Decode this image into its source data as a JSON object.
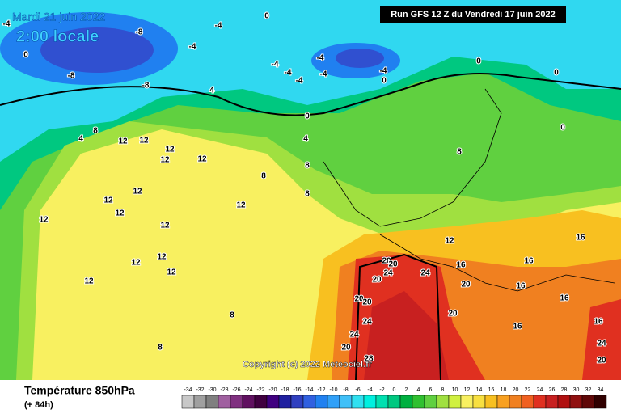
{
  "header": {
    "date": "Mardi 21 juin 2022",
    "time": "2:00 locale",
    "run": "Run GFS 12 Z du Vendredi 17 juin 2022"
  },
  "copyright": "Copyright (c) 2022 Meteociel.fr",
  "legend": {
    "title": "Température 850hPa",
    "subtitle": "(+ 84h)",
    "values": [
      -34,
      -32,
      -30,
      -28,
      -26,
      -24,
      -22,
      -20,
      -18,
      -16,
      -14,
      -12,
      -10,
      -8,
      -6,
      -4,
      -2,
      0,
      2,
      4,
      6,
      8,
      10,
      12,
      14,
      16,
      18,
      20,
      22,
      24,
      26,
      28,
      30,
      32,
      34
    ],
    "colors": [
      "#c8c8c8",
      "#a0a0a0",
      "#808080",
      "#a060a0",
      "#803080",
      "#601060",
      "#400040",
      "#400080",
      "#2020a0",
      "#3040c0",
      "#3060e0",
      "#2080f0",
      "#30a0f8",
      "#40c0f8",
      "#30e0f0",
      "#00f0e0",
      "#00e0b0",
      "#00c880",
      "#00b040",
      "#30c030",
      "#60d040",
      "#a0e040",
      "#d0f040",
      "#f8f060",
      "#f8e040",
      "#f8c020",
      "#f8a020",
      "#f08020",
      "#f06020",
      "#e03020",
      "#c82020",
      "#b01010",
      "#901010",
      "#600808",
      "#300000"
    ]
  },
  "contour_labels": [
    -4,
    -8,
    -4,
    0,
    -4,
    -8,
    -8,
    0,
    -4,
    -4,
    -4,
    -4,
    -4,
    0,
    -4,
    0,
    0,
    0,
    4,
    8,
    4,
    12,
    12,
    12,
    12,
    12,
    12,
    12,
    12,
    12,
    12,
    12,
    12,
    12,
    12,
    12,
    8,
    8,
    8,
    4,
    8,
    0,
    12,
    16,
    16,
    16,
    20,
    20,
    24,
    20,
    24,
    20,
    16,
    20,
    20,
    16,
    24,
    20,
    24,
    20,
    16,
    24,
    20,
    8,
    8,
    28,
    16
  ]
}
